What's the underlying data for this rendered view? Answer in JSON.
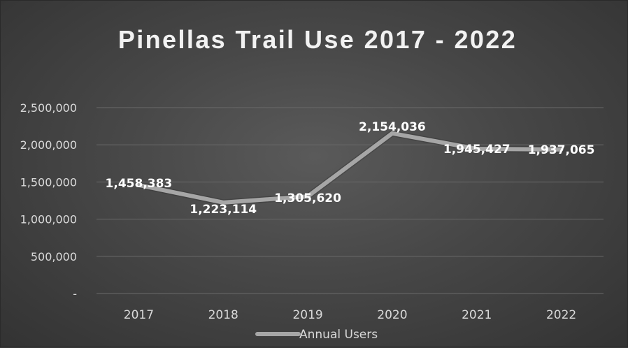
{
  "chart_data": {
    "type": "line",
    "title": "Pinellas Trail Use 2017 - 2022",
    "xlabel": "",
    "ylabel": "",
    "categories": [
      "2017",
      "2018",
      "2019",
      "2020",
      "2021",
      "2022"
    ],
    "series": [
      {
        "name": "Annual Users",
        "values": [
          1458383,
          1223114,
          1305620,
          2154036,
          1945427,
          1937065
        ],
        "labels": [
          "1,458,383",
          "1,223,114",
          "1,305,620",
          "2,154,036",
          "1,945,427",
          "1,937,065"
        ],
        "color": "#a6a6a6"
      }
    ],
    "ylim": [
      0,
      2500000
    ],
    "yticks": [
      0,
      500000,
      1000000,
      1500000,
      2000000,
      2500000
    ],
    "ytick_labels": [
      "-",
      "500,000",
      "1,000,000",
      "1,500,000",
      "2,000,000",
      "2,500,000"
    ],
    "grid": true,
    "legend": "bottom"
  }
}
